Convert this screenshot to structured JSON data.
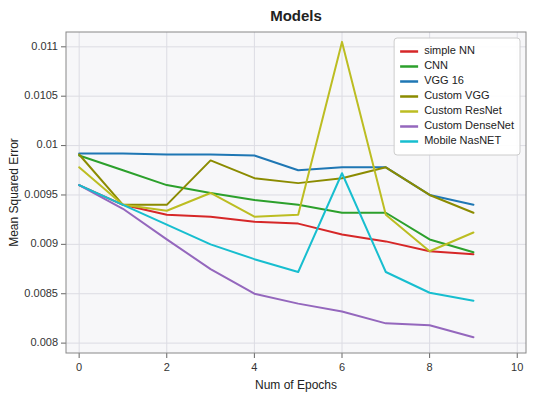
{
  "chart_data": {
    "type": "line",
    "title": "Models",
    "xlabel": "Num of Epochs",
    "ylabel": "Mean Squared Error",
    "x": [
      0,
      1,
      2,
      3,
      4,
      5,
      6,
      7,
      8,
      9
    ],
    "series": [
      {
        "name": "simple NN",
        "color": "#d62728",
        "values": [
          0.0096,
          0.0094,
          0.0093,
          0.00928,
          0.00923,
          0.00921,
          0.0091,
          0.00903,
          0.00893,
          0.0089
        ]
      },
      {
        "name": "CNN",
        "color": "#2ca02c",
        "values": [
          0.0099,
          0.00975,
          0.0096,
          0.00952,
          0.00945,
          0.0094,
          0.00932,
          0.00932,
          0.00905,
          0.00892
        ]
      },
      {
        "name": "VGG 16",
        "color": "#1f77b4",
        "values": [
          0.00992,
          0.00992,
          0.00991,
          0.00991,
          0.0099,
          0.00975,
          0.00978,
          0.00978,
          0.0095,
          0.0094
        ]
      },
      {
        "name": "Custom VGG",
        "color": "#8b8b00",
        "values": [
          0.00991,
          0.0094,
          0.0094,
          0.00985,
          0.00967,
          0.00962,
          0.00967,
          0.00978,
          0.0095,
          0.00932
        ]
      },
      {
        "name": "Custom ResNet",
        "color": "#bcbd22",
        "values": [
          0.00978,
          0.0094,
          0.00934,
          0.00952,
          0.00928,
          0.0093,
          0.01105,
          0.0093,
          0.00893,
          0.00912
        ]
      },
      {
        "name": "Custom DenseNet",
        "color": "#9467bd",
        "values": [
          0.0096,
          0.00936,
          0.00905,
          0.00875,
          0.0085,
          0.0084,
          0.00832,
          0.0082,
          0.00818,
          0.00806
        ]
      },
      {
        "name": "Mobile NasNET",
        "color": "#17becf",
        "values": [
          0.0096,
          0.0094,
          0.0092,
          0.009,
          0.00885,
          0.00872,
          0.00972,
          0.00872,
          0.00851,
          0.00843
        ]
      }
    ],
    "xlim": [
      -0.3,
      10.2
    ],
    "ylim": [
      0.0079,
      0.01115
    ],
    "xticks": [
      0,
      2,
      4,
      6,
      8,
      10
    ],
    "yticks": [
      0.008,
      0.0085,
      0.009,
      0.0095,
      0.01,
      0.0105,
      0.011
    ],
    "grid": true,
    "legend": "upper right"
  }
}
